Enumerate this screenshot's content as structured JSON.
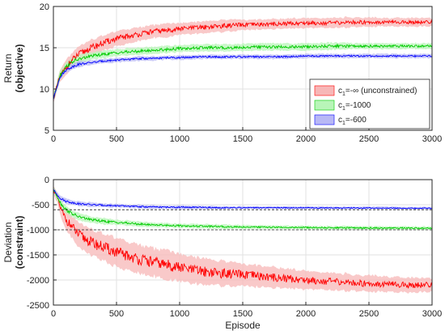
{
  "chart_data": [
    {
      "type": "line",
      "ylabel_line1": "Return",
      "ylabel_line2": "(objective)",
      "xlabel": "",
      "xlim": [
        0,
        3000
      ],
      "ylim": [
        5,
        20
      ],
      "xticks": [
        0,
        500,
        1000,
        1500,
        2000,
        2500,
        3000
      ],
      "yticks": [
        5,
        10,
        15,
        20
      ],
      "grid": true,
      "legend": {
        "placement": "right",
        "entries": [
          {
            "prefix": "c",
            "sub": "1",
            "suffix": "=-∞ (unconstrained)",
            "color": "#ff0000",
            "fill": "#f7b7b7"
          },
          {
            "prefix": "c",
            "sub": "1",
            "suffix": "=-1000",
            "color": "#00cc00",
            "fill": "#b8f5b8"
          },
          {
            "prefix": "c",
            "sub": "1",
            "suffix": "=-600",
            "color": "#0000ff",
            "fill": "#b8b8f5"
          }
        ]
      },
      "series": [
        {
          "color": "#ff0000",
          "band_color": "#f7b7b7",
          "x": [
            0,
            50,
            100,
            150,
            200,
            300,
            400,
            500,
            600,
            700,
            800,
            900,
            1000,
            1200,
            1400,
            1600,
            1800,
            2000,
            2200,
            2400,
            2600,
            2800,
            3000
          ],
          "mean": [
            8.8,
            11.5,
            12.6,
            13.5,
            14.2,
            15.0,
            15.6,
            16.1,
            16.4,
            16.7,
            17.0,
            17.1,
            17.3,
            17.5,
            17.7,
            17.8,
            17.9,
            18.0,
            18.0,
            18.1,
            18.1,
            18.1,
            18.1
          ],
          "band": [
            0.5,
            0.8,
            1.0,
            1.1,
            1.1,
            1.1,
            1.1,
            1.0,
            1.0,
            0.9,
            0.9,
            0.9,
            0.8,
            0.8,
            0.8,
            0.7,
            0.7,
            0.7,
            0.7,
            0.7,
            0.6,
            0.6,
            0.6
          ]
        },
        {
          "color": "#00cc00",
          "band_color": "#b8f5b8",
          "x": [
            0,
            50,
            100,
            150,
            200,
            300,
            400,
            500,
            600,
            700,
            800,
            900,
            1000,
            1200,
            1400,
            1600,
            1800,
            2000,
            2200,
            2400,
            2600,
            2800,
            3000
          ],
          "mean": [
            8.8,
            11.6,
            12.7,
            13.3,
            13.6,
            14.0,
            14.2,
            14.4,
            14.5,
            14.6,
            14.7,
            14.8,
            14.9,
            15.0,
            15.0,
            15.1,
            15.1,
            15.1,
            15.2,
            15.2,
            15.2,
            15.2,
            15.2
          ],
          "band": [
            0.4,
            0.6,
            0.6,
            0.6,
            0.6,
            0.5,
            0.5,
            0.5,
            0.5,
            0.5,
            0.5,
            0.5,
            0.5,
            0.5,
            0.5,
            0.5,
            0.5,
            0.5,
            0.5,
            0.4,
            0.4,
            0.4,
            0.4
          ]
        },
        {
          "color": "#0000ff",
          "band_color": "#b8b8f5",
          "x": [
            0,
            50,
            100,
            150,
            200,
            300,
            400,
            500,
            600,
            700,
            800,
            900,
            1000,
            1200,
            1400,
            1600,
            1800,
            2000,
            2200,
            2400,
            2600,
            2800,
            3000
          ],
          "mean": [
            8.8,
            11.4,
            12.3,
            12.7,
            13.0,
            13.2,
            13.4,
            13.5,
            13.6,
            13.7,
            13.7,
            13.8,
            13.8,
            13.9,
            13.9,
            13.9,
            13.9,
            14.0,
            14.0,
            14.0,
            14.0,
            14.0,
            14.0
          ],
          "band": [
            0.4,
            0.4,
            0.4,
            0.4,
            0.4,
            0.3,
            0.3,
            0.3,
            0.3,
            0.3,
            0.3,
            0.3,
            0.3,
            0.3,
            0.3,
            0.3,
            0.3,
            0.3,
            0.3,
            0.3,
            0.3,
            0.3,
            0.3
          ]
        }
      ]
    },
    {
      "type": "line",
      "ylabel_line1": "Deviation",
      "ylabel_line2": "(constraint)",
      "xlabel": "Episode",
      "xlim": [
        0,
        3000
      ],
      "ylim": [
        -2500,
        0
      ],
      "xticks": [
        0,
        500,
        1000,
        1500,
        2000,
        2500,
        3000
      ],
      "yticks": [
        -2500,
        -2000,
        -1500,
        -1000,
        -500,
        0
      ],
      "grid": true,
      "reference_lines": [
        -600,
        -1000
      ],
      "series": [
        {
          "color": "#ff0000",
          "band_color": "#f7b7b7",
          "x": [
            0,
            30,
            60,
            100,
            150,
            200,
            300,
            400,
            500,
            600,
            700,
            800,
            900,
            1000,
            1100,
            1200,
            1300,
            1400,
            1500,
            1600,
            1700,
            1800,
            1900,
            2000,
            2200,
            2400,
            2600,
            2800,
            3000
          ],
          "mean": [
            -200,
            -350,
            -600,
            -800,
            -950,
            -1100,
            -1250,
            -1350,
            -1450,
            -1530,
            -1600,
            -1650,
            -1700,
            -1750,
            -1800,
            -1830,
            -1860,
            -1880,
            -1900,
            -1920,
            -1940,
            -1960,
            -1980,
            -2000,
            -2030,
            -2060,
            -2080,
            -2100,
            -2100
          ],
          "band": [
            80,
            120,
            180,
            220,
            260,
            280,
            300,
            320,
            320,
            320,
            320,
            320,
            320,
            310,
            300,
            290,
            280,
            270,
            260,
            250,
            240,
            230,
            220,
            210,
            200,
            190,
            180,
            170,
            160
          ]
        },
        {
          "color": "#00cc00",
          "band_color": "#b8f5b8",
          "x": [
            0,
            30,
            60,
            100,
            150,
            200,
            300,
            400,
            500,
            600,
            700,
            800,
            900,
            1000,
            1200,
            1400,
            1600,
            1800,
            2000,
            2200,
            2400,
            2600,
            2800,
            3000
          ],
          "mean": [
            -200,
            -330,
            -480,
            -600,
            -680,
            -740,
            -800,
            -830,
            -850,
            -870,
            -890,
            -900,
            -910,
            -920,
            -930,
            -940,
            -945,
            -950,
            -955,
            -960,
            -960,
            -965,
            -965,
            -970
          ],
          "band": [
            60,
            80,
            90,
            90,
            80,
            80,
            70,
            70,
            60,
            60,
            60,
            50,
            50,
            50,
            50,
            50,
            40,
            40,
            40,
            40,
            40,
            40,
            40,
            40
          ]
        },
        {
          "color": "#0000ff",
          "band_color": "#b8b8f5",
          "x": [
            0,
            30,
            60,
            100,
            150,
            200,
            300,
            400,
            500,
            600,
            700,
            800,
            900,
            1000,
            1200,
            1400,
            1600,
            1800,
            2000,
            2200,
            2400,
            2600,
            2800,
            3000
          ],
          "mean": [
            -200,
            -300,
            -380,
            -430,
            -460,
            -480,
            -500,
            -510,
            -520,
            -530,
            -540,
            -545,
            -550,
            -550,
            -555,
            -560,
            -560,
            -560,
            -560,
            -565,
            -565,
            -565,
            -570,
            -570
          ],
          "band": [
            50,
            60,
            60,
            60,
            50,
            50,
            50,
            40,
            40,
            40,
            40,
            40,
            40,
            40,
            40,
            30,
            30,
            30,
            30,
            30,
            30,
            30,
            30,
            30
          ]
        }
      ]
    }
  ]
}
